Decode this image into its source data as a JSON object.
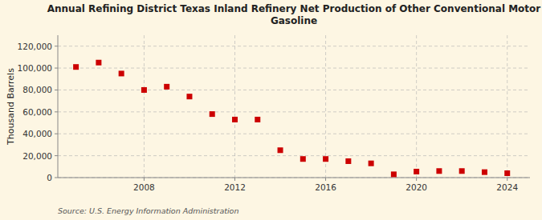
{
  "chart_data": {
    "type": "scatter",
    "title": "Annual Refining District Texas Inland Refinery Net Production of Other Conventional Motor\nGasoline",
    "y_label": "Thousand Barrels",
    "annotations": [
      "Source: U.S. Energy Information Administration"
    ],
    "x": [
      2005,
      2006,
      2007,
      2008,
      2009,
      2010,
      2011,
      2012,
      2013,
      2014,
      2015,
      2016,
      2017,
      2018,
      2019,
      2020,
      2021,
      2022,
      2023,
      2024
    ],
    "values": [
      101000,
      105000,
      95000,
      80000,
      83000,
      74000,
      58000,
      53000,
      53000,
      25000,
      17000,
      17000,
      15000,
      13000,
      3000,
      5500,
      6000,
      6000,
      5000,
      4000
    ],
    "color": "#cc0000",
    "marker": "square",
    "xlim": [
      2004.2,
      2025.0
    ],
    "xticks": [
      2008,
      2012,
      2016,
      2020,
      2024
    ],
    "ylim": [
      0,
      130000
    ],
    "yticks": [
      0,
      {
        "value": 20000,
        "label": "20,000"
      },
      {
        "value": 40000,
        "label": "40,000"
      },
      {
        "value": 60000,
        "label": "60,000"
      },
      {
        "value": 80000,
        "label": "80,000"
      },
      {
        "value": 100000,
        "label": "100,000"
      },
      {
        "value": 120000,
        "label": "120,000"
      }
    ],
    "grid": true
  }
}
